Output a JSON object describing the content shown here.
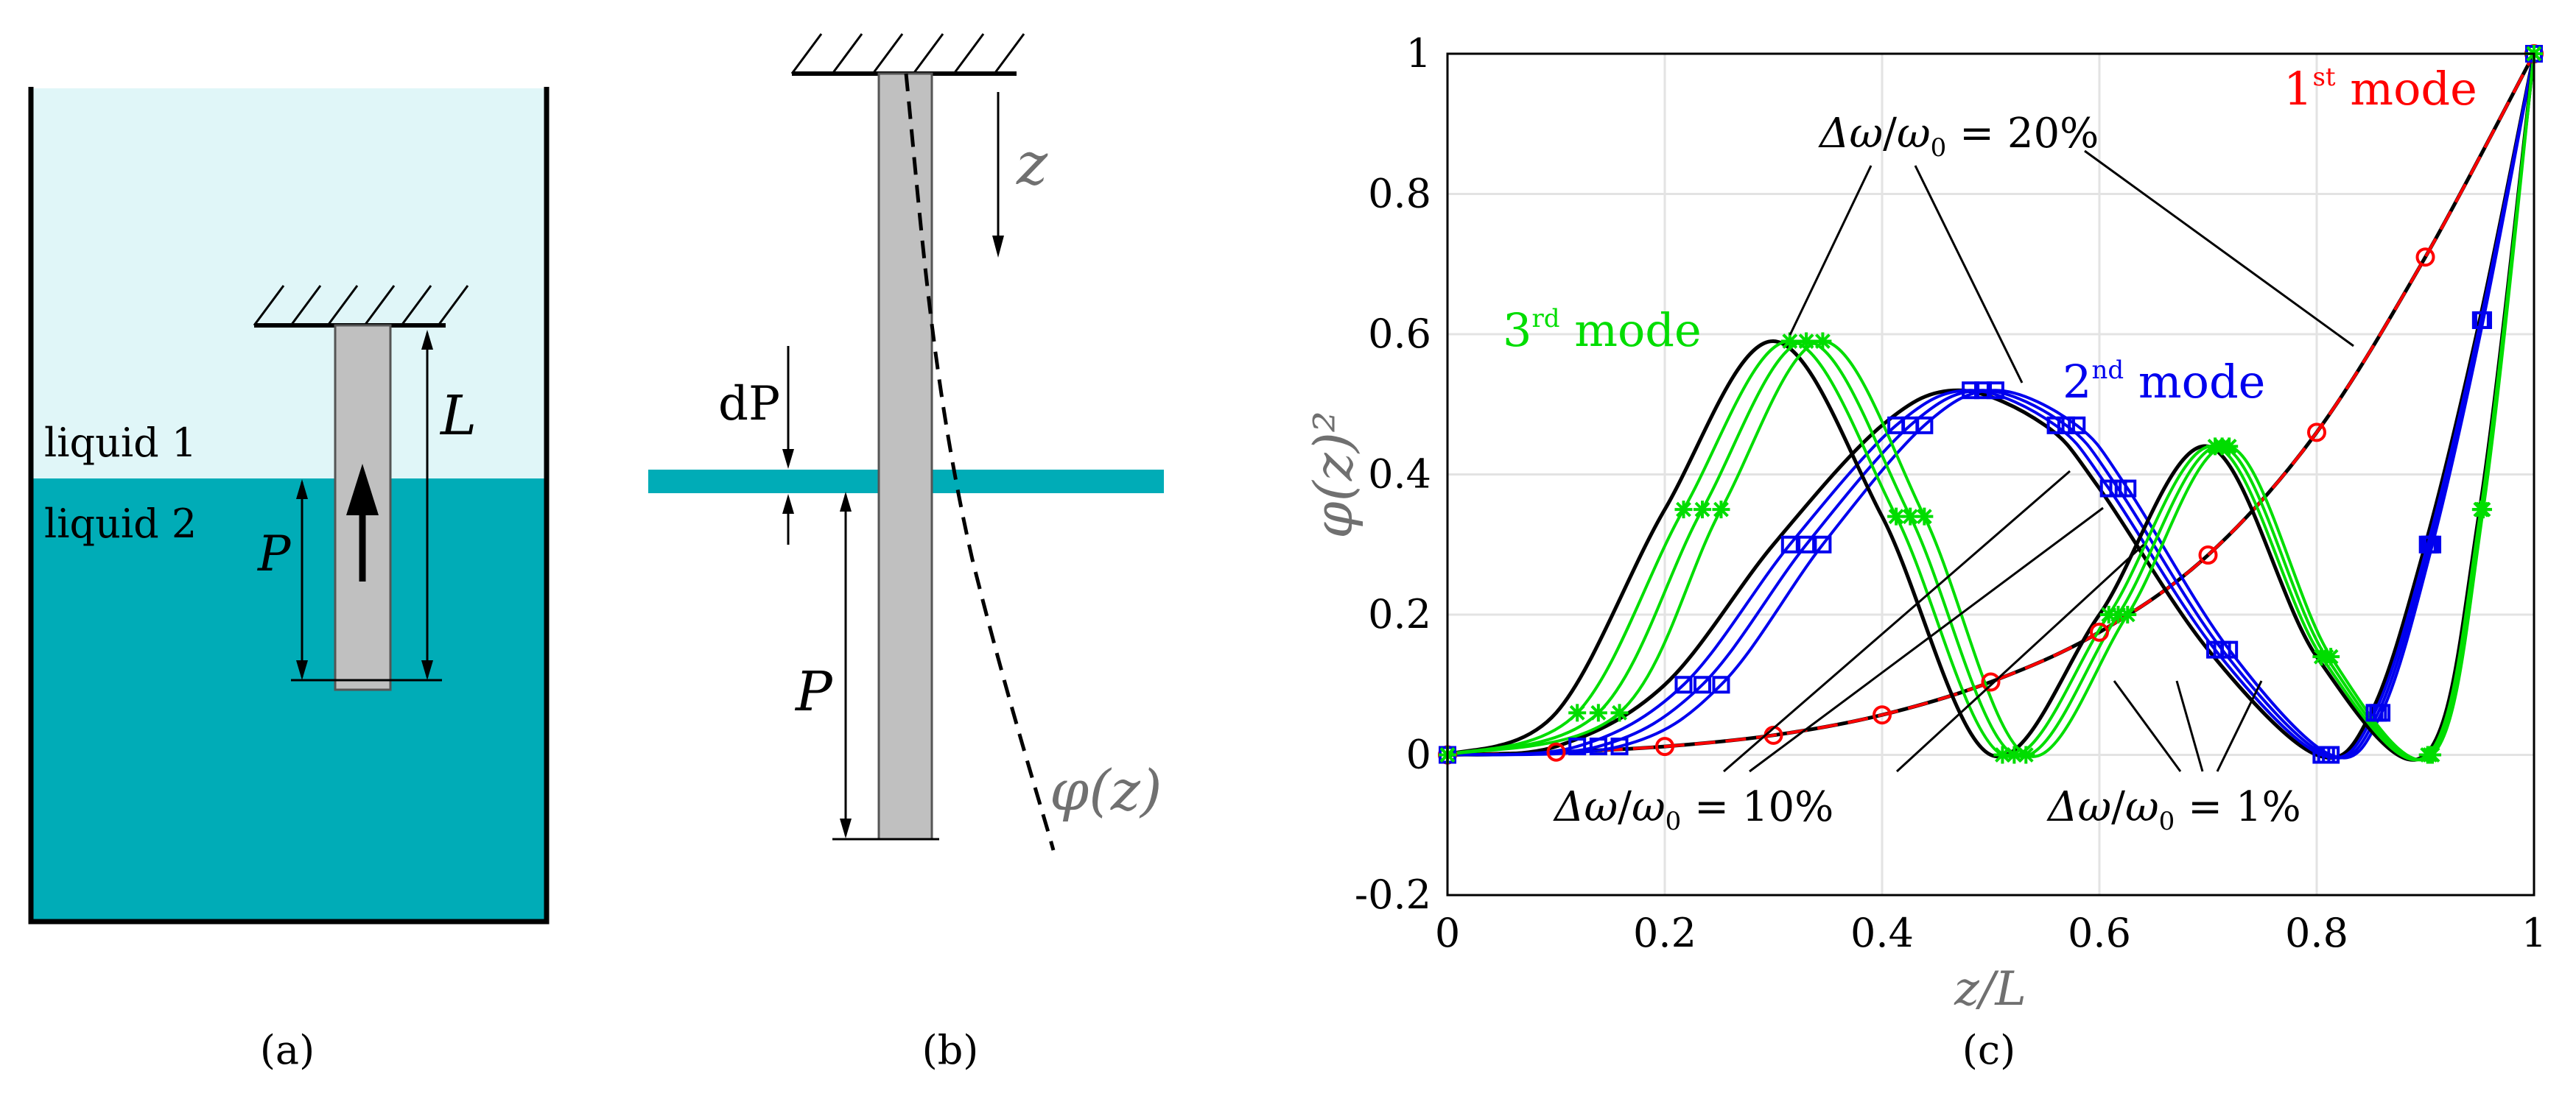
{
  "panel_a": {
    "caption": "(a)",
    "liquid1_label": "liquid 1",
    "liquid2_label": "liquid 2",
    "length_label": "L",
    "immersion_label": "P",
    "colors": {
      "liquid1": "#e0f6f8",
      "liquid2": "#00acb7",
      "rod": "#c0c0c0"
    }
  },
  "panel_b": {
    "caption": "(b)",
    "axis_label": "z",
    "increment_label": "dP",
    "immersion_label": "P",
    "mode_label": "φ(z)",
    "colors": {
      "interface": "#00acb7",
      "rod": "#c0c0c0"
    }
  },
  "panel_c": {
    "caption": "(c)",
    "annotations": {
      "mode1": "1st mode",
      "mode2": "2nd mode",
      "mode3": "3rd mode",
      "pct20": "Δω/ω0 = 20%",
      "pct10": "Δω/ω0 = 10%",
      "pct1": "Δω/ω0 = 1%"
    },
    "colors": {
      "mode1": "#ff0000",
      "mode2": "#0000ee",
      "mode3": "#00dd00",
      "reference": "#000000"
    }
  },
  "chart_data": {
    "type": "line",
    "title": "",
    "xlabel": "z/L",
    "ylabel": "φ(z)²",
    "xlim": [
      0,
      1
    ],
    "ylim": [
      -0.2,
      1
    ],
    "xticks": [
      "0",
      "0.2",
      "0.4",
      "0.6",
      "0.8",
      "1"
    ],
    "yticks": [
      "-0.2",
      "0",
      "0.2",
      "0.4",
      "0.6",
      "0.8",
      "1"
    ],
    "grid": true,
    "series": [
      {
        "name": "1st mode",
        "color": "#ff0000",
        "marker": "circle",
        "shift": [
          0
        ],
        "points": [
          [
            0,
            0
          ],
          [
            0.1,
            0.004
          ],
          [
            0.2,
            0.012
          ],
          [
            0.3,
            0.028
          ],
          [
            0.4,
            0.057
          ],
          [
            0.5,
            0.104
          ],
          [
            0.6,
            0.175
          ],
          [
            0.7,
            0.285
          ],
          [
            0.8,
            0.46
          ],
          [
            0.9,
            0.71
          ],
          [
            1,
            1
          ]
        ]
      },
      {
        "name": "2nd mode",
        "color": "#0000ee",
        "marker": "square",
        "shift": [
          0.012,
          0.024,
          0.036
        ],
        "points": [
          [
            0,
            0
          ],
          [
            0.1,
            0.012
          ],
          [
            0.2,
            0.1
          ],
          [
            0.3,
            0.3
          ],
          [
            0.4,
            0.47
          ],
          [
            0.47,
            0.52
          ],
          [
            0.55,
            0.47
          ],
          [
            0.6,
            0.38
          ],
          [
            0.7,
            0.15
          ],
          [
            0.8,
            0
          ],
          [
            0.85,
            0.06
          ],
          [
            0.9,
            0.3
          ],
          [
            0.95,
            0.62
          ],
          [
            1,
            1
          ]
        ]
      },
      {
        "name": "3rd mode",
        "color": "#00dd00",
        "marker": "asterisk",
        "shift": [
          0.012,
          0.024,
          0.036
        ],
        "points": [
          [
            0,
            0
          ],
          [
            0.1,
            0.06
          ],
          [
            0.2,
            0.35
          ],
          [
            0.3,
            0.59
          ],
          [
            0.4,
            0.34
          ],
          [
            0.5,
            0
          ],
          [
            0.6,
            0.2
          ],
          [
            0.7,
            0.44
          ],
          [
            0.8,
            0.14
          ],
          [
            0.9,
            0
          ],
          [
            0.95,
            0.35
          ],
          [
            1,
            1
          ]
        ]
      }
    ]
  }
}
